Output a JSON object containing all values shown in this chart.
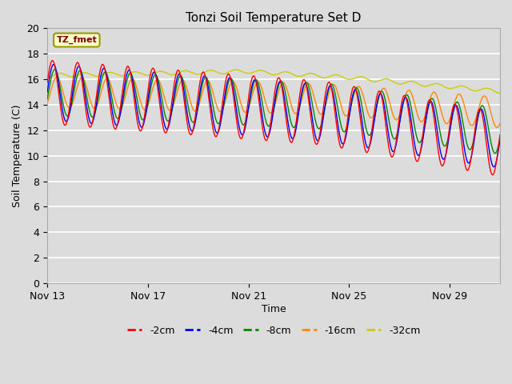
{
  "title": "Tonzi Soil Temperature Set D",
  "xlabel": "Time",
  "ylabel": "Soil Temperature (C)",
  "annotation": "TZ_fmet",
  "ylim": [
    0,
    20
  ],
  "yticks": [
    0,
    2,
    4,
    6,
    8,
    10,
    12,
    14,
    16,
    18,
    20
  ],
  "x_tick_labels": [
    "Nov 13",
    "Nov 17",
    "Nov 21",
    "Nov 25",
    "Nov 29"
  ],
  "x_tick_pos": [
    0,
    4,
    8,
    12,
    16
  ],
  "xlim": [
    0,
    18
  ],
  "n_days": 18,
  "bg_color": "#dcdcdc",
  "plot_bg_color": "#dcdcdc",
  "grid_color": "#ffffff",
  "series_colors": {
    "-2cm": "#ff0000",
    "-4cm": "#0000ff",
    "-8cm": "#008800",
    "-16cm": "#ff8800",
    "-32cm": "#cccc00"
  },
  "legend_entries": [
    "-2cm",
    "-4cm",
    "-8cm",
    "-16cm",
    "-32cm"
  ],
  "annotation_fg": "#800000",
  "annotation_bg": "#ffffcc",
  "annotation_border": "#999900"
}
